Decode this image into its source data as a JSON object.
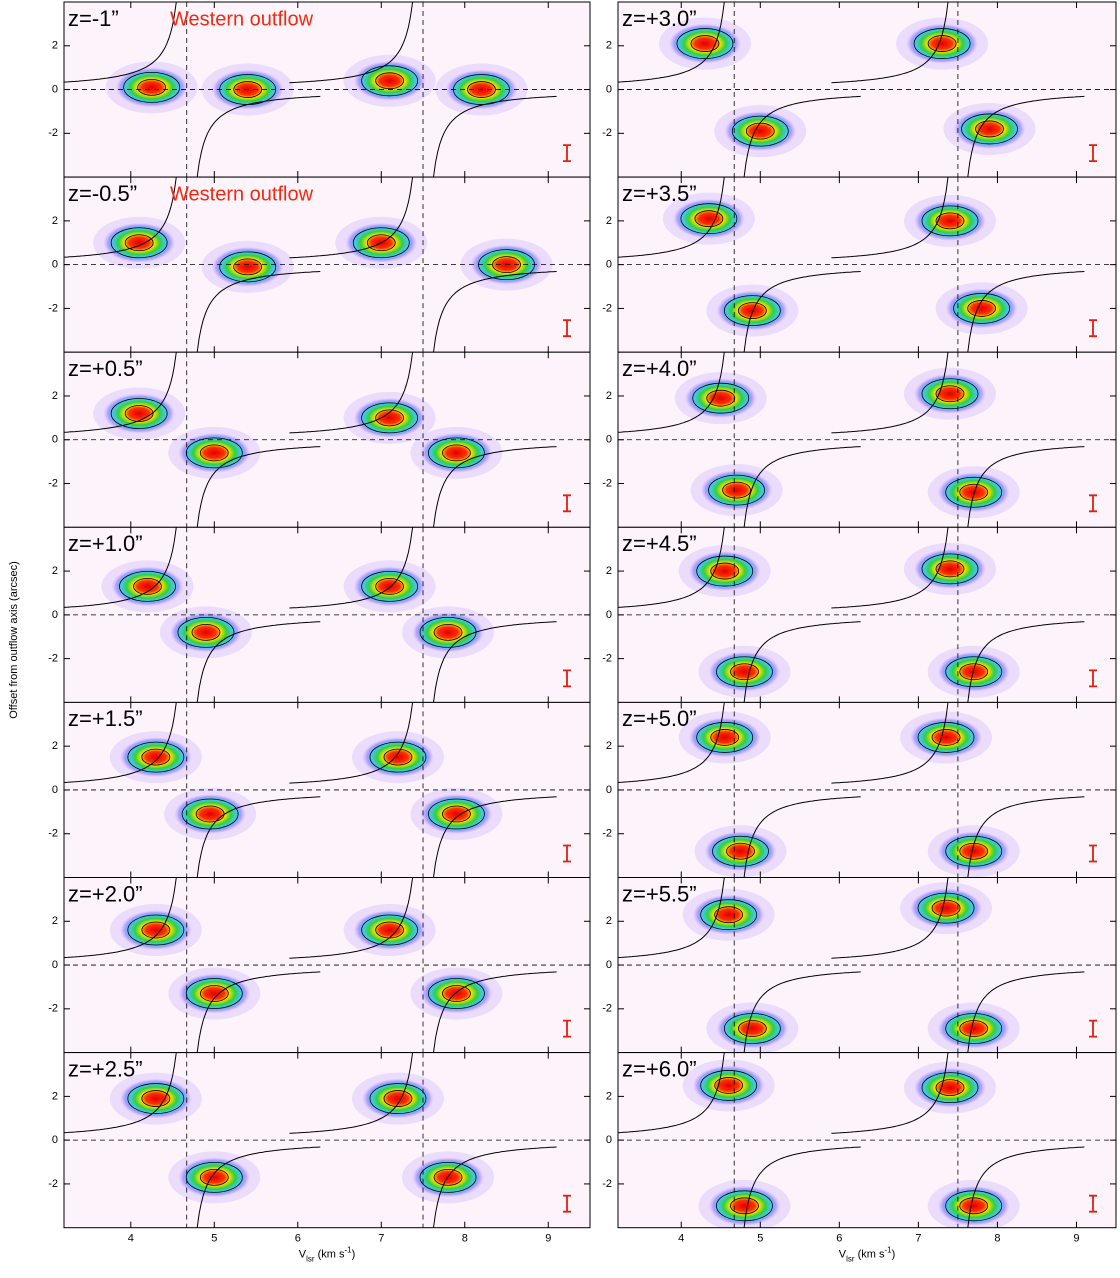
{
  "chart_data": {
    "type": "pv-grid",
    "xlabel": {
      "main": "V",
      "sub": "lsr",
      "unit": " (km s",
      "sup": "-1",
      "close": ")"
    },
    "ylabel": "Offset from outflow axis (arcsec)",
    "xlim": [
      3.2,
      9.5
    ],
    "ylim": [
      -4,
      4
    ],
    "xticks": [
      4,
      5,
      6,
      7,
      8,
      9
    ],
    "yticks": [
      -2,
      0,
      2
    ],
    "ref_lines": {
      "x": [
        4.67,
        7.5
      ],
      "y": [
        0
      ]
    },
    "panels": [
      {
        "label": "z=-1”",
        "annotation": "Western outflow",
        "peaks": [
          [
            4.25,
            0.1
          ],
          [
            5.4,
            0
          ],
          [
            7.1,
            0.4
          ],
          [
            8.2,
            0
          ]
        ]
      },
      {
        "label": "z=-0.5”",
        "annotation": "Western outflow",
        "peaks": [
          [
            4.1,
            1.0
          ],
          [
            7.0,
            1.0
          ],
          [
            5.4,
            -0.1
          ],
          [
            8.5,
            0
          ]
        ]
      },
      {
        "label": "z=+0.5”",
        "peaks": [
          [
            4.1,
            1.2
          ],
          [
            7.1,
            1.0
          ],
          [
            5.0,
            -0.6
          ],
          [
            7.9,
            -0.6
          ]
        ]
      },
      {
        "label": "z=+1.0”",
        "peaks": [
          [
            4.2,
            1.3
          ],
          [
            7.1,
            1.3
          ],
          [
            4.9,
            -0.8
          ],
          [
            7.8,
            -0.8
          ]
        ]
      },
      {
        "label": "z=+1.5”",
        "peaks": [
          [
            4.3,
            1.5
          ],
          [
            7.2,
            1.5
          ],
          [
            4.95,
            -1.1
          ],
          [
            7.9,
            -1.1
          ]
        ]
      },
      {
        "label": "z=+2.0”",
        "peaks": [
          [
            4.3,
            1.6
          ],
          [
            7.1,
            1.6
          ],
          [
            5.0,
            -1.3
          ],
          [
            7.9,
            -1.3
          ]
        ]
      },
      {
        "label": "z=+2.5”",
        "peaks": [
          [
            4.3,
            1.9
          ],
          [
            7.2,
            1.9
          ],
          [
            5.0,
            -1.7
          ],
          [
            7.8,
            -1.7
          ]
        ]
      },
      {
        "label": "z=+3.0”",
        "peaks": [
          [
            4.3,
            2.1
          ],
          [
            7.3,
            2.1
          ],
          [
            5.0,
            -1.9
          ],
          [
            7.9,
            -1.8
          ]
        ]
      },
      {
        "label": "z=+3.5”",
        "peaks": [
          [
            4.35,
            2.1
          ],
          [
            7.4,
            2.0
          ],
          [
            4.9,
            -2.1
          ],
          [
            7.8,
            -2.0
          ]
        ]
      },
      {
        "label": "z=+4.0”",
        "peaks": [
          [
            4.5,
            1.9
          ],
          [
            7.4,
            2.1
          ],
          [
            4.7,
            -2.3
          ],
          [
            7.7,
            -2.4
          ]
        ]
      },
      {
        "label": "z=+4.5”",
        "peaks": [
          [
            4.55,
            2.0
          ],
          [
            7.4,
            2.1
          ],
          [
            4.8,
            -2.6
          ],
          [
            7.7,
            -2.6
          ]
        ]
      },
      {
        "label": "z=+5.0”",
        "peaks": [
          [
            4.55,
            2.4
          ],
          [
            7.35,
            2.4
          ],
          [
            4.75,
            -2.8
          ],
          [
            7.7,
            -2.8
          ]
        ]
      },
      {
        "label": "z=+5.5”",
        "peaks": [
          [
            4.6,
            2.3
          ],
          [
            7.35,
            2.6
          ],
          [
            4.9,
            -2.9
          ],
          [
            7.7,
            -2.9
          ]
        ]
      },
      {
        "label": "z=+6.0”",
        "peaks": [
          [
            4.6,
            2.5
          ],
          [
            7.4,
            2.4
          ],
          [
            4.8,
            -3.0
          ],
          [
            7.7,
            -3.0
          ]
        ]
      }
    ]
  }
}
